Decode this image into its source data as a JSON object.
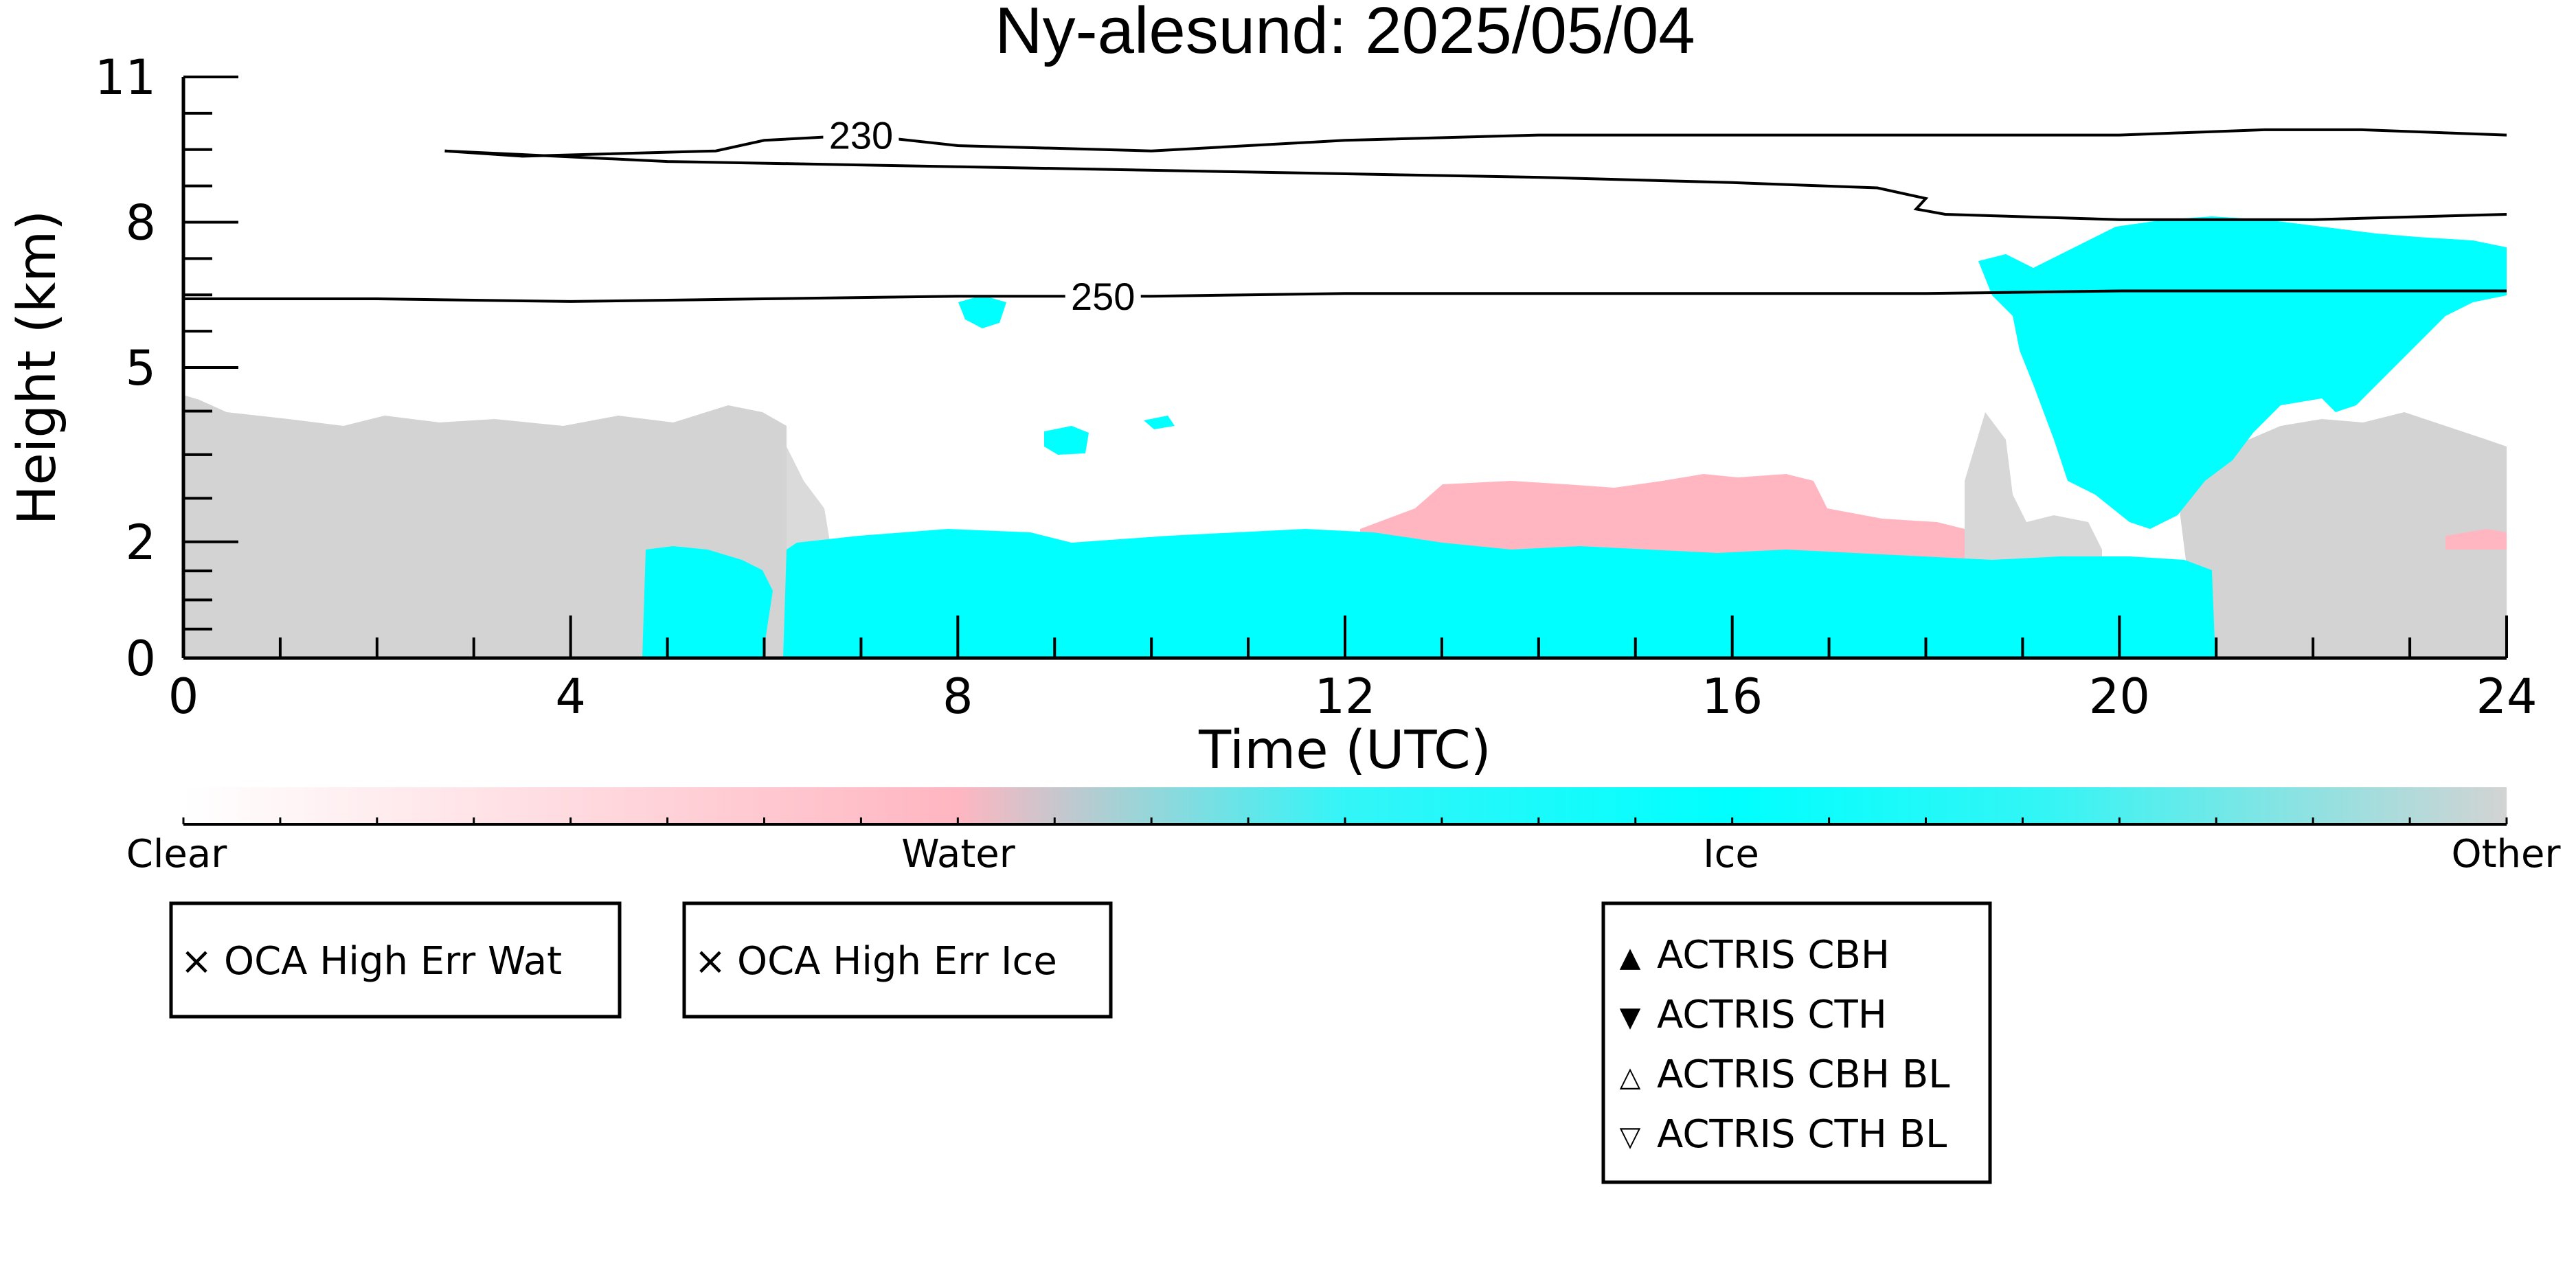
{
  "chart_data": {
    "type": "heatmap",
    "title": "Ny-alesund: 2025/05/04",
    "xlabel": "Time (UTC)",
    "ylabel": "Height (km)",
    "xlim": [
      0,
      24
    ],
    "ylim": [
      0,
      11
    ],
    "x_ticks": [
      "0",
      "4",
      "8",
      "12",
      "16",
      "20",
      "24"
    ],
    "y_ticks": [
      "0",
      "2",
      "5",
      "8",
      "11"
    ],
    "y_tick_values": [
      0,
      2.2,
      5.5,
      8.25,
      11
    ],
    "colorbar": {
      "labels": [
        "Clear",
        "Water",
        "Ice",
        "Other"
      ],
      "colors": [
        "#ffffff",
        "#ffb6c1",
        "#00ffff",
        "#d3d3d3"
      ]
    },
    "categories": {
      "water": "#ffb6c1",
      "ice": "#00ffff",
      "other": "#d3d3d3"
    },
    "contours": [
      {
        "label": "230",
        "x": [
          2.7,
          3.5,
          5.5,
          6.0,
          7.0,
          8.0,
          10.0,
          12.0,
          14.0,
          16.0,
          18.0,
          20.0,
          21.5,
          22.5,
          24.0
        ],
        "y": [
          9.6,
          9.5,
          9.6,
          9.8,
          9.9,
          9.7,
          9.6,
          9.8,
          9.9,
          9.9,
          9.9,
          9.9,
          10.0,
          10.0,
          9.9
        ]
      },
      {
        "label": "230",
        "x": [
          2.7,
          5.0,
          8.0,
          11.0,
          14.0,
          16.0,
          17.5,
          18.0,
          17.9,
          18.2,
          20.0,
          22.0,
          24.0
        ],
        "y": [
          9.6,
          9.4,
          9.3,
          9.2,
          9.1,
          9.0,
          8.9,
          8.7,
          8.5,
          8.4,
          8.3,
          8.3,
          8.4
        ]
      },
      {
        "label": "250",
        "x": [
          0,
          2.0,
          4.0,
          6.0,
          8.0,
          10.0,
          12.0,
          14.0,
          16.0,
          18.0,
          20.0,
          22.0,
          24.0
        ],
        "y": [
          6.8,
          6.8,
          6.75,
          6.8,
          6.85,
          6.85,
          6.9,
          6.9,
          6.9,
          6.9,
          6.95,
          6.95,
          6.95
        ]
      }
    ],
    "legend_boxes": [
      {
        "entries": [
          {
            "marker": "×",
            "color": "#2ec52e",
            "label": "OCA High Err Wat"
          }
        ]
      },
      {
        "entries": [
          {
            "marker": "×",
            "color": "#0000ff",
            "label": "OCA High Err Ice"
          }
        ]
      },
      {
        "entries": [
          {
            "marker": "▲",
            "color": "#ff0000",
            "label": "ACTRIS CBH"
          },
          {
            "marker": "▼",
            "color": "#ff0000",
            "label": "ACTRIS CTH"
          },
          {
            "marker": "△",
            "color": "#ff0000",
            "label": "ACTRIS CBH BL"
          },
          {
            "marker": "▽",
            "color": "#ff0000",
            "label": "ACTRIS CTH BL"
          }
        ]
      }
    ]
  }
}
